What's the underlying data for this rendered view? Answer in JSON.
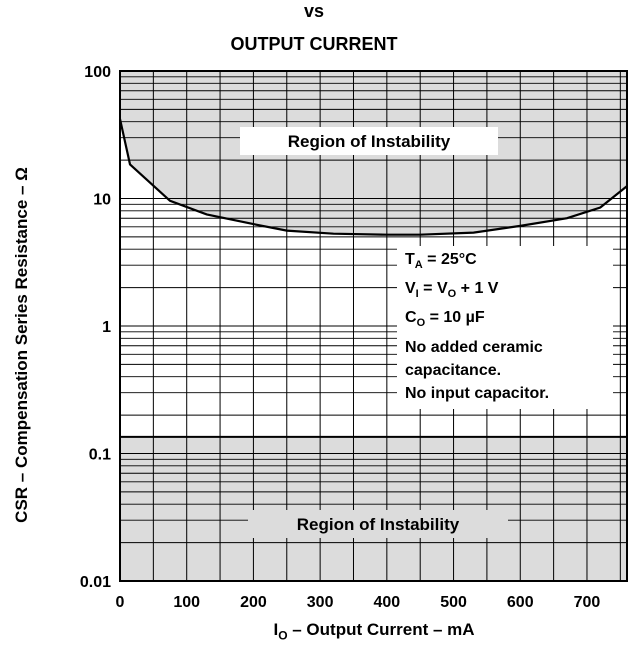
{
  "chart_data": {
    "type": "line",
    "title_line1": "vs",
    "title_line2": "OUTPUT CURRENT",
    "ylabel": "CSR – Compensation Series Resistance – Ω",
    "xlabel": {
      "main": "I",
      "sub": "O",
      "rest": " – Output Current – mA"
    },
    "y_scale": "log",
    "ylim": [
      0.01,
      100
    ],
    "xlim": [
      0,
      760
    ],
    "x_ticks": [
      0,
      100,
      200,
      300,
      400,
      500,
      600,
      700
    ],
    "y_ticks": [
      {
        "value": 0.01,
        "label": "0.01"
      },
      {
        "value": 0.1,
        "label": "0.1"
      },
      {
        "value": 1,
        "label": "1"
      },
      {
        "value": 10,
        "label": "10"
      },
      {
        "value": 100,
        "label": "100"
      }
    ],
    "grid": true,
    "upper_boundary": {
      "x": [
        0,
        15,
        75,
        130,
        200,
        250,
        320,
        400,
        450,
        530,
        600,
        670,
        720,
        760
      ],
      "y": [
        42,
        18.5,
        9.6,
        7.5,
        6.3,
        5.6,
        5.3,
        5.2,
        5.2,
        5.4,
        6.1,
        7.0,
        8.5,
        12.5
      ]
    },
    "lower_boundary": {
      "y": 0.135
    },
    "region_label": "Region of Instability",
    "region_color": "#dcdcdc",
    "conditions": [
      {
        "main": "T",
        "sub": "A",
        "rest": " = 25°C"
      },
      {
        "main": "V",
        "sub": "I",
        "rest": " = V",
        "sub2": "O",
        "rest2": " + 1 V"
      },
      {
        "main": "C",
        "sub": "O",
        "rest": " = 10 µF"
      },
      {
        "main": "No added ceramic"
      },
      {
        "main": "capacitance."
      },
      {
        "main": "No input capacitor."
      }
    ]
  }
}
